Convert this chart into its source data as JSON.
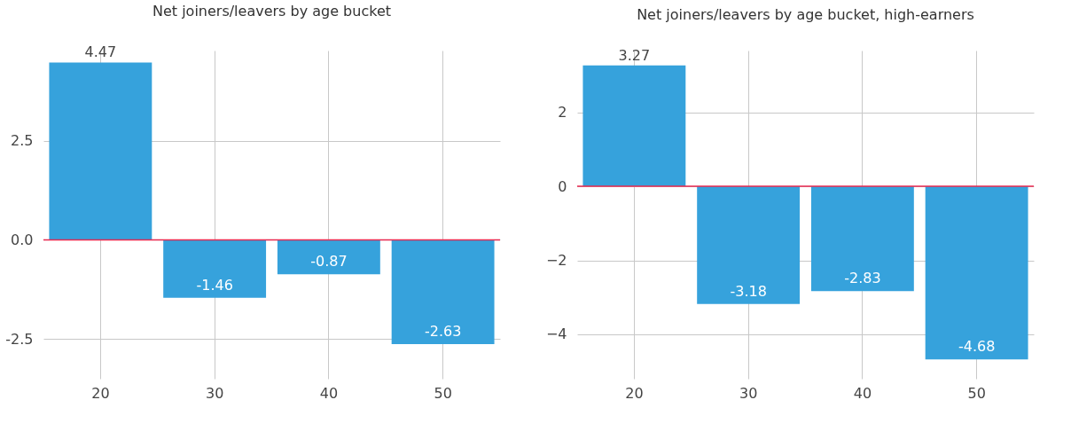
{
  "chart_data": [
    {
      "type": "bar",
      "title": "Net joiners/leavers by age bucket",
      "categories": [
        "20",
        "30",
        "40",
        "50"
      ],
      "values": [
        4.47,
        -1.46,
        -0.87,
        -2.63
      ],
      "color": "#36a2dc",
      "data_labels": true,
      "ylim": [
        -3.5,
        4.77
      ],
      "yticks": [
        {
          "value": -2.5,
          "label": "-2.5"
        },
        {
          "value": 0,
          "label": "0.0"
        },
        {
          "value": 2.5,
          "label": "2.5"
        }
      ],
      "grid": true,
      "ref_lines": [
        {
          "axis": "y",
          "value": 0,
          "color": "#e8294f"
        }
      ]
    },
    {
      "type": "bar",
      "title": "Net joiners/leavers by age bucket, high-earners",
      "categories": [
        "20",
        "30",
        "40",
        "50"
      ],
      "values": [
        3.27,
        -3.18,
        -2.83,
        -4.68
      ],
      "color": "#36a2dc",
      "data_labels": true,
      "ylim": [
        -5.2,
        3.67
      ],
      "yticks": [
        -4,
        -2,
        0,
        2
      ],
      "grid": true,
      "ref_lines": [
        {
          "axis": "y",
          "value": 0,
          "color": "#e8294f"
        }
      ]
    }
  ]
}
